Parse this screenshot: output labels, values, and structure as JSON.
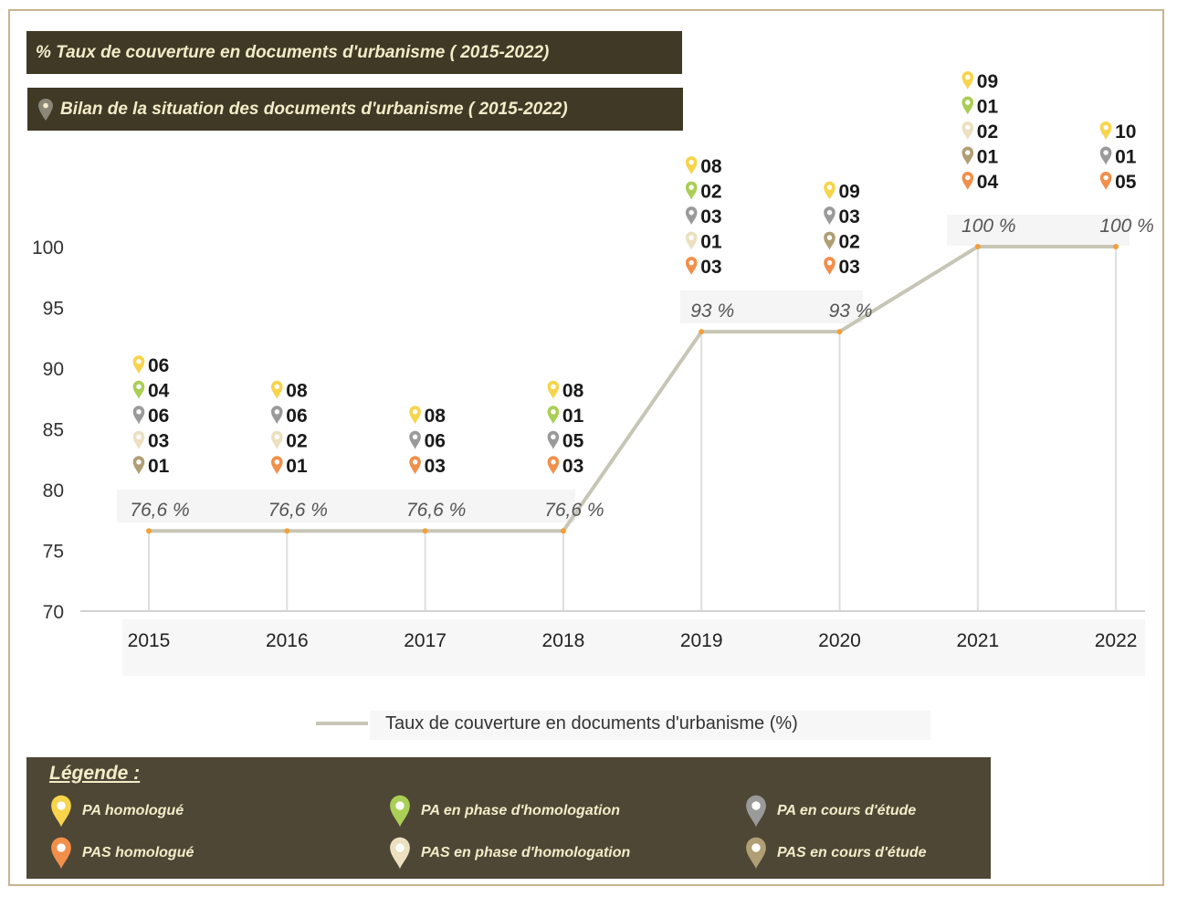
{
  "header": {
    "title1": "% Taux de couverture en documents d'urbanisme ( 2015-2022)",
    "title2": "Bilan de la situation des documents d'urbanisme ( 2015-2022)"
  },
  "colors": {
    "pa_homologue": "#f7d44c",
    "pa_phase": "#a9cf55",
    "pa_etude": "#9a9a9a",
    "pas_homologue": "#f28f4b",
    "pas_phase": "#ece0c0",
    "pas_etude": "#b09e74",
    "line": "#c7c6b6",
    "banner": "#3f3925",
    "legend_bg": "#4e4735"
  },
  "chart_data": {
    "type": "line",
    "categories": [
      "2015",
      "2016",
      "2017",
      "2018",
      "2019",
      "2020",
      "2021",
      "2022"
    ],
    "series": [
      {
        "name": "Taux de couverture en documents d'urbanisme (%)",
        "values": [
          76.6,
          76.6,
          76.6,
          76.6,
          93,
          93,
          100,
          100
        ]
      }
    ],
    "value_labels": [
      "76,6 %",
      "76,6 %",
      "76,6 %",
      "76,6 %",
      "93 %",
      "93 %",
      "100 %",
      "100 %"
    ],
    "ylim": [
      70,
      100
    ],
    "yticks": [
      "70",
      "75",
      "80",
      "85",
      "90",
      "95",
      "100"
    ],
    "legend": "bottom",
    "annotations": [
      [
        {
          "type": "pa_homologue",
          "value": "06"
        },
        {
          "type": "pa_phase",
          "value": "04"
        },
        {
          "type": "pa_etude",
          "value": "06"
        },
        {
          "type": "pas_phase",
          "value": "03"
        },
        {
          "type": "pas_etude",
          "value": "01"
        }
      ],
      [
        {
          "type": "pa_homologue",
          "value": "08"
        },
        {
          "type": "pa_etude",
          "value": "06"
        },
        {
          "type": "pas_phase",
          "value": "02"
        },
        {
          "type": "pas_homologue",
          "value": "01"
        }
      ],
      [
        {
          "type": "pa_homologue",
          "value": "08"
        },
        {
          "type": "pa_etude",
          "value": "06"
        },
        {
          "type": "pas_homologue",
          "value": "03"
        }
      ],
      [
        {
          "type": "pa_homologue",
          "value": "08"
        },
        {
          "type": "pa_phase",
          "value": "01"
        },
        {
          "type": "pa_etude",
          "value": "05"
        },
        {
          "type": "pas_homologue",
          "value": "03"
        }
      ],
      [
        {
          "type": "pa_homologue",
          "value": "08"
        },
        {
          "type": "pa_phase",
          "value": "02"
        },
        {
          "type": "pa_etude",
          "value": "03"
        },
        {
          "type": "pas_phase",
          "value": "01"
        },
        {
          "type": "pas_homologue",
          "value": "03"
        }
      ],
      [
        {
          "type": "pa_homologue",
          "value": "09"
        },
        {
          "type": "pa_etude",
          "value": "03"
        },
        {
          "type": "pas_etude",
          "value": "02"
        },
        {
          "type": "pas_homologue",
          "value": "03"
        }
      ],
      [
        {
          "type": "pa_homologue",
          "value": "09"
        },
        {
          "type": "pa_phase",
          "value": "01"
        },
        {
          "type": "pas_phase",
          "value": "02"
        },
        {
          "type": "pas_etude",
          "value": "01"
        },
        {
          "type": "pas_homologue",
          "value": "04"
        }
      ],
      [
        {
          "type": "pa_homologue",
          "value": "10"
        },
        {
          "type": "pa_etude",
          "value": "01"
        },
        {
          "type": "pas_homologue",
          "value": "05"
        }
      ]
    ]
  },
  "legend": {
    "title": "Légende :",
    "items": [
      {
        "type": "pa_homologue",
        "label": "PA homologué"
      },
      {
        "type": "pa_phase",
        "label": "PA en phase d'homologation"
      },
      {
        "type": "pa_etude",
        "label": "PA en cours d'étude"
      },
      {
        "type": "pas_homologue",
        "label": "PAS homologué"
      },
      {
        "type": "pas_phase",
        "label": "PAS en phase d'homologation"
      },
      {
        "type": "pas_etude",
        "label": "PAS en cours d'étude"
      }
    ]
  }
}
